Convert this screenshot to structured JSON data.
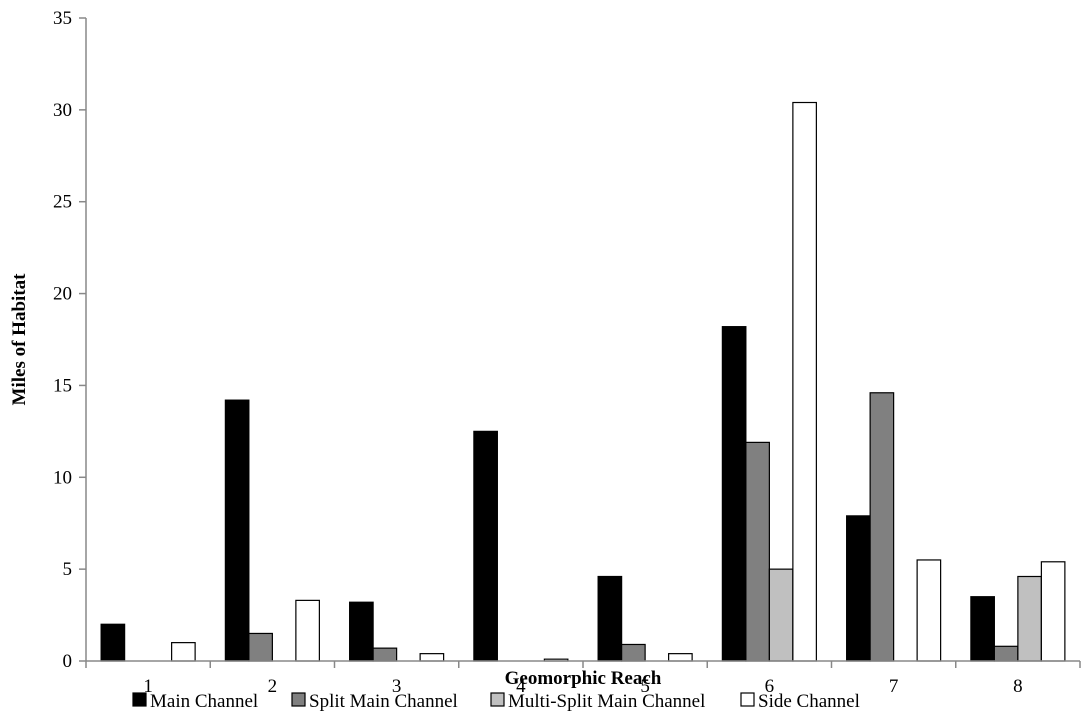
{
  "chart_data": {
    "type": "bar",
    "title": "",
    "xlabel": "Geomorphic Reach",
    "ylabel": "Miles of Habitat",
    "categories": [
      "1",
      "2",
      "3",
      "4",
      "5",
      "6",
      "7",
      "8"
    ],
    "ylim": [
      0,
      35
    ],
    "yticks": [
      0,
      5,
      10,
      15,
      20,
      25,
      30,
      35
    ],
    "grid": false,
    "legend_position": "bottom",
    "series": [
      {
        "name": "Main Channel",
        "color": "#000000",
        "values": [
          2.0,
          14.2,
          3.2,
          12.5,
          4.6,
          18.2,
          7.9,
          3.5
        ]
      },
      {
        "name": "Split Main Channel",
        "color": "#808080",
        "values": [
          0,
          1.5,
          0.7,
          0,
          0.9,
          11.9,
          14.6,
          0.8
        ]
      },
      {
        "name": "Multi-Split Main Channel",
        "color": "#c0c0c0",
        "values": [
          0,
          0,
          0,
          0,
          0,
          5.0,
          0,
          4.6
        ]
      },
      {
        "name": "Side Channel",
        "color": "#ffffff",
        "values": [
          1.0,
          3.3,
          0.4,
          0.1,
          0.4,
          30.4,
          5.5,
          5.4
        ]
      }
    ]
  }
}
